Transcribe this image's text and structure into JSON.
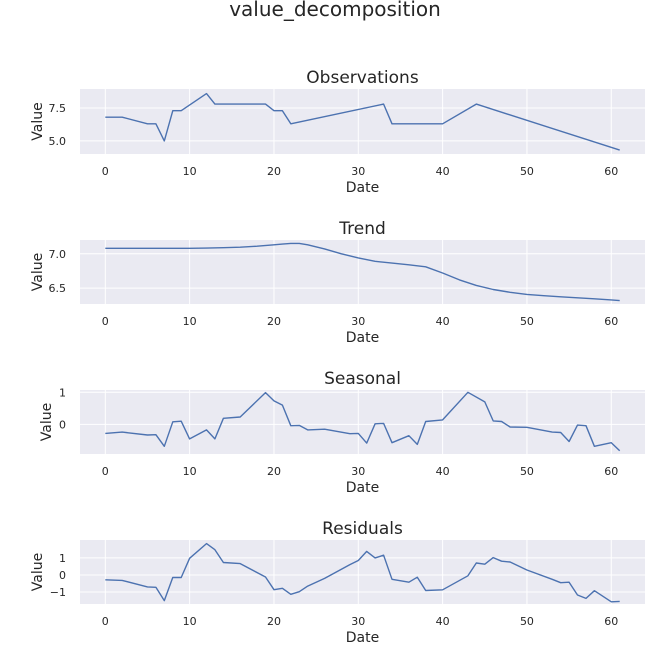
{
  "figure": {
    "title": "value_decomposition"
  },
  "chart_data": [
    {
      "type": "line",
      "title": "Observations",
      "xlabel": "Date",
      "ylabel": "Value",
      "xlim": [
        -3,
        64
      ],
      "ylim": [
        4.0,
        8.95
      ],
      "xticks": [
        0,
        10,
        20,
        30,
        40,
        50,
        60
      ],
      "yticks": [
        5.0,
        7.5
      ],
      "ytick_labels": [
        "5.0",
        "7.5"
      ],
      "grid": true,
      "x": [
        0,
        2,
        5,
        6,
        7,
        8,
        9,
        12,
        13,
        19,
        20,
        21,
        22,
        33,
        34,
        40,
        44,
        61
      ],
      "values": [
        6.8,
        6.8,
        6.3,
        6.3,
        5.0,
        7.3,
        7.3,
        8.6,
        7.8,
        7.8,
        7.3,
        7.3,
        6.3,
        7.8,
        6.3,
        6.3,
        7.8,
        4.3
      ],
      "color": "#4c72b0"
    },
    {
      "type": "line",
      "title": "Trend",
      "xlabel": "Date",
      "ylabel": "Value",
      "xlim": [
        -3,
        64
      ],
      "ylim": [
        6.27,
        7.2
      ],
      "xticks": [
        0,
        10,
        20,
        30,
        40,
        50,
        60
      ],
      "yticks": [
        6.5,
        7.0
      ],
      "ytick_labels": [
        "6.5",
        "7.0"
      ],
      "grid": true,
      "x": [
        0,
        5,
        10,
        12,
        14,
        16,
        18,
        20,
        21,
        22,
        23,
        24,
        26,
        28,
        30,
        32,
        34,
        36,
        38,
        40,
        42,
        44,
        46,
        48,
        50,
        52,
        54,
        56,
        58,
        60,
        61
      ],
      "values": [
        7.08,
        7.08,
        7.08,
        7.083,
        7.088,
        7.096,
        7.11,
        7.13,
        7.14,
        7.15,
        7.15,
        7.13,
        7.07,
        7.0,
        6.94,
        6.89,
        6.865,
        6.84,
        6.81,
        6.72,
        6.62,
        6.54,
        6.48,
        6.44,
        6.41,
        6.39,
        6.375,
        6.36,
        6.345,
        6.33,
        6.32
      ],
      "color": "#4c72b0"
    },
    {
      "type": "line",
      "title": "Seasonal",
      "xlabel": "Date",
      "ylabel": "Value",
      "xlim": [
        -3,
        64
      ],
      "ylim": [
        -0.92,
        1.07
      ],
      "xticks": [
        0,
        10,
        20,
        30,
        40,
        50,
        60
      ],
      "yticks": [
        0,
        1
      ],
      "ytick_labels": [
        "0",
        "1"
      ],
      "grid": true,
      "x": [
        0,
        2,
        5,
        6,
        7,
        8,
        9,
        10,
        12,
        13,
        14,
        16,
        19,
        20,
        21,
        22,
        23,
        24,
        26,
        29,
        30,
        31,
        32,
        33,
        34,
        36,
        37,
        38,
        40,
        43,
        45,
        46,
        47,
        48,
        50,
        53,
        54,
        55,
        56,
        57,
        58,
        60,
        61
      ],
      "values": [
        -0.28,
        -0.24,
        -0.33,
        -0.32,
        -0.68,
        0.08,
        0.1,
        -0.45,
        -0.17,
        -0.45,
        0.19,
        0.23,
        0.99,
        0.73,
        0.6,
        -0.04,
        -0.03,
        -0.17,
        -0.15,
        -0.29,
        -0.28,
        -0.58,
        0.02,
        0.03,
        -0.57,
        -0.35,
        -0.62,
        0.09,
        0.14,
        1.0,
        0.7,
        0.11,
        0.09,
        -0.08,
        -0.09,
        -0.24,
        -0.25,
        -0.53,
        -0.02,
        -0.04,
        -0.68,
        -0.57,
        -0.82
      ],
      "color": "#4c72b0"
    },
    {
      "type": "line",
      "title": "Residuals",
      "xlabel": "Date",
      "ylabel": "Value",
      "xlim": [
        -3,
        64
      ],
      "ylim": [
        -1.7,
        2.05
      ],
      "xticks": [
        0,
        10,
        20,
        30,
        40,
        50,
        60
      ],
      "yticks": [
        -1,
        0,
        1
      ],
      "ytick_labels": [
        "−1",
        "0",
        "1"
      ],
      "grid": true,
      "x": [
        0,
        2,
        5,
        6,
        7,
        8,
        9,
        10,
        12,
        13,
        14,
        16,
        19,
        20,
        21,
        22,
        23,
        24,
        26,
        29,
        30,
        31,
        32,
        33,
        34,
        36,
        37,
        38,
        40,
        43,
        44,
        45,
        46,
        47,
        48,
        50,
        53,
        54,
        55,
        56,
        57,
        58,
        60,
        61
      ],
      "values": [
        -0.28,
        -0.32,
        -0.7,
        -0.72,
        -1.5,
        -0.14,
        -0.15,
        0.98,
        1.84,
        1.48,
        0.73,
        0.67,
        -0.12,
        -0.86,
        -0.78,
        -1.13,
        -0.98,
        -0.65,
        -0.2,
        0.61,
        0.85,
        1.38,
        1.0,
        1.16,
        -0.25,
        -0.42,
        -0.13,
        -0.91,
        -0.87,
        -0.05,
        0.7,
        0.63,
        1.02,
        0.81,
        0.76,
        0.29,
        -0.25,
        -0.45,
        -0.42,
        -1.17,
        -1.37,
        -0.92,
        -1.57,
        -1.55
      ],
      "color": "#4c72b0"
    }
  ]
}
